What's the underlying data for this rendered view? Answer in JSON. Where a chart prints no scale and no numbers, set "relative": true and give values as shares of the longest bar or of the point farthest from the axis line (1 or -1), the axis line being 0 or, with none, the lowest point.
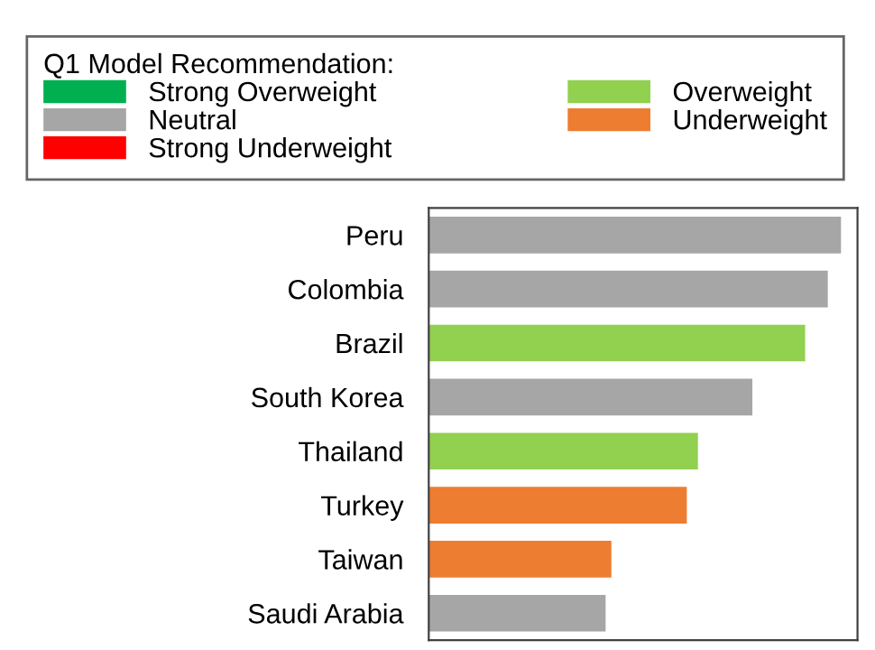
{
  "chart_data": {
    "type": "bar",
    "orientation": "horizontal",
    "relative": true,
    "legend_title": "Q1 Model Recommendation:",
    "legend": "top",
    "categories": [
      "Peru",
      "Colombia",
      "Brazil",
      "South Korea",
      "Thailand",
      "Turkey",
      "Taiwan",
      "Saudi Arabia"
    ],
    "series": [
      {
        "name": "Strong Overweight",
        "color": "#00b050",
        "values": [
          null,
          null,
          null,
          null,
          null,
          null,
          null,
          null
        ]
      },
      {
        "name": "Overweight",
        "color": "#92d050",
        "values": [
          null,
          null,
          0.913,
          null,
          0.653,
          null,
          null,
          null
        ]
      },
      {
        "name": "Neutral",
        "color": "#a6a6a6",
        "values": [
          1,
          0.968,
          null,
          0.785,
          null,
          null,
          null,
          0.429
        ]
      },
      {
        "name": "Underweight",
        "color": "#ed7d31",
        "values": [
          null,
          null,
          null,
          null,
          null,
          0.626,
          0.443,
          null
        ]
      },
      {
        "name": "Strong Underweight",
        "color": "#ff0000",
        "values": [
          null,
          null,
          null,
          null,
          null,
          null,
          null,
          null
        ]
      }
    ]
  }
}
